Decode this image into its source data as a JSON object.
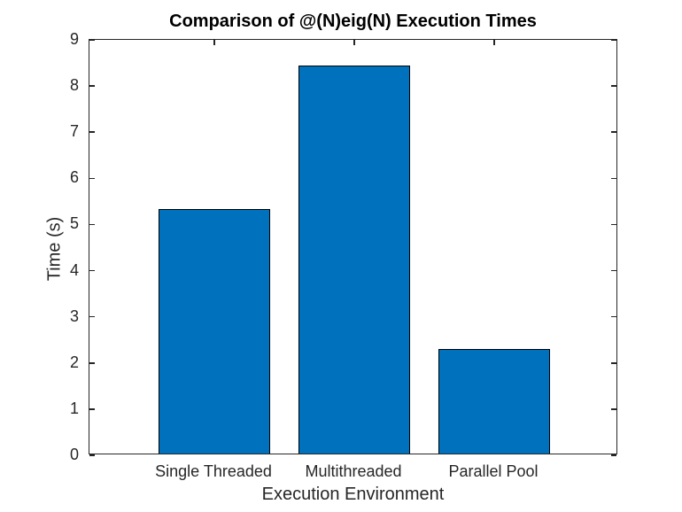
{
  "chart_data": {
    "type": "bar",
    "title": "Comparison of @(N)eig(N) Execution Times",
    "xlabel": "Execution Environment",
    "ylabel": "Time (s)",
    "categories": [
      "Single Threaded",
      "Multithreaded",
      "Parallel Pool"
    ],
    "values": [
      5.3,
      8.4,
      2.26
    ],
    "ylim": [
      0,
      9
    ],
    "yticks": [
      0,
      1,
      2,
      3,
      4,
      5,
      6,
      7,
      8,
      9
    ],
    "grid": false,
    "bar_face_color": "#0072BD",
    "bar_edge_color": "#000000",
    "axis_color": "#262626",
    "tick_label_color": "#262626",
    "title_color": "#000000",
    "background_color": "#FFFFFF"
  }
}
